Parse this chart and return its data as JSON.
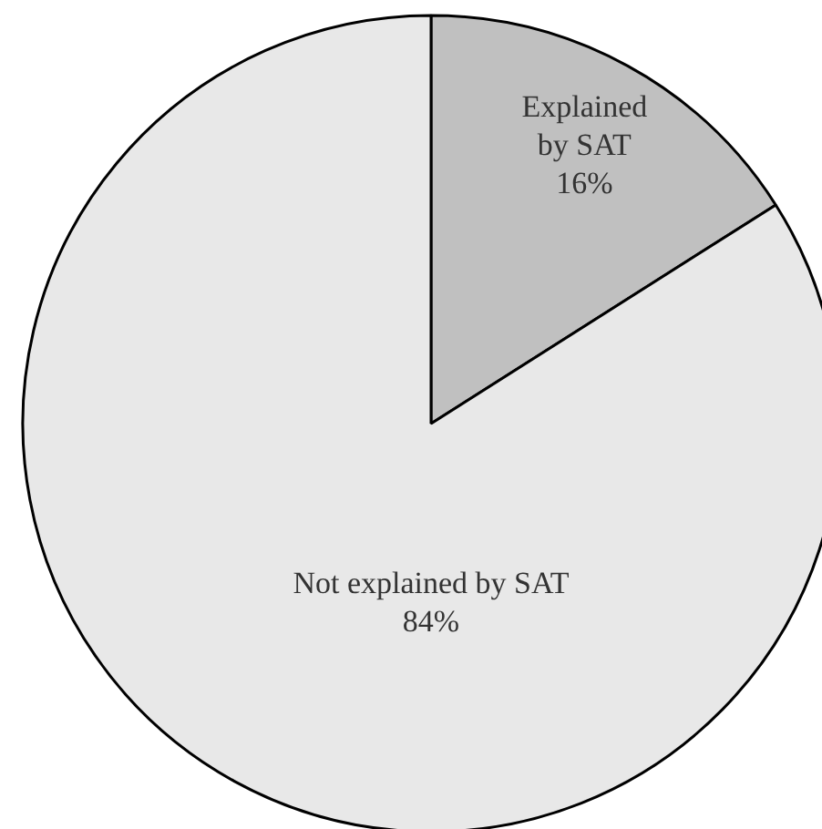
{
  "chart_data": {
    "type": "pie",
    "categories": [
      "Explained\nby SAT",
      "Not explained by SAT"
    ],
    "values": [
      16,
      84
    ],
    "colors": [
      "#c0c0c0",
      "#e8e8e8"
    ],
    "value_labels": [
      "16%",
      "84%"
    ]
  }
}
